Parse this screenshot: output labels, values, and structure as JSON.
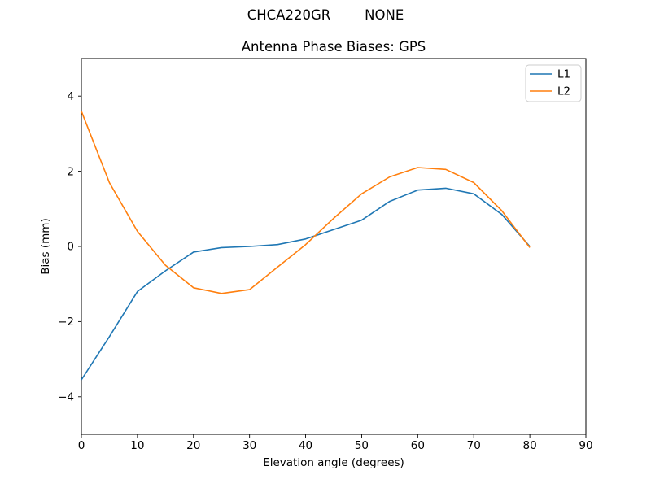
{
  "chart_data": {
    "type": "line",
    "suptitle": "CHCA220GR        NONE",
    "title": "Antenna Phase Biases: GPS",
    "xlabel": "Elevation angle (degrees)",
    "ylabel": "Bias (mm)",
    "xlim": [
      0,
      90
    ],
    "ylim": [
      -5,
      5
    ],
    "grid": false,
    "background_color": "#ffffff",
    "axis_color": "#000000",
    "legend": {
      "position": "upper right",
      "border_color": "#cccccc"
    },
    "x_tick_values": [
      0,
      10,
      20,
      30,
      40,
      50,
      60,
      70,
      80,
      90
    ],
    "x_tick_labels": [
      "0",
      "10",
      "20",
      "30",
      "40",
      "50",
      "60",
      "70",
      "80",
      "90"
    ],
    "y_tick_values": [
      -4,
      -2,
      0,
      2,
      4
    ],
    "y_tick_labels": [
      "−4",
      "−2",
      "0",
      "2",
      "4"
    ],
    "x": [
      0,
      5,
      10,
      15,
      20,
      25,
      30,
      35,
      40,
      45,
      50,
      55,
      60,
      65,
      70,
      75,
      80
    ],
    "series": [
      {
        "name": "L1",
        "color": "#1f77b4",
        "values": [
          -3.55,
          -2.4,
          -1.2,
          -0.65,
          -0.15,
          -0.03,
          0.0,
          0.05,
          0.2,
          0.45,
          0.7,
          1.2,
          1.5,
          1.55,
          1.4,
          0.85,
          0.0
        ]
      },
      {
        "name": "L2",
        "color": "#ff7f0e",
        "values": [
          3.6,
          1.7,
          0.4,
          -0.5,
          -1.1,
          -1.25,
          -1.15,
          -0.55,
          0.05,
          0.75,
          1.4,
          1.85,
          2.1,
          2.05,
          1.7,
          0.95,
          -0.03
        ]
      }
    ]
  }
}
